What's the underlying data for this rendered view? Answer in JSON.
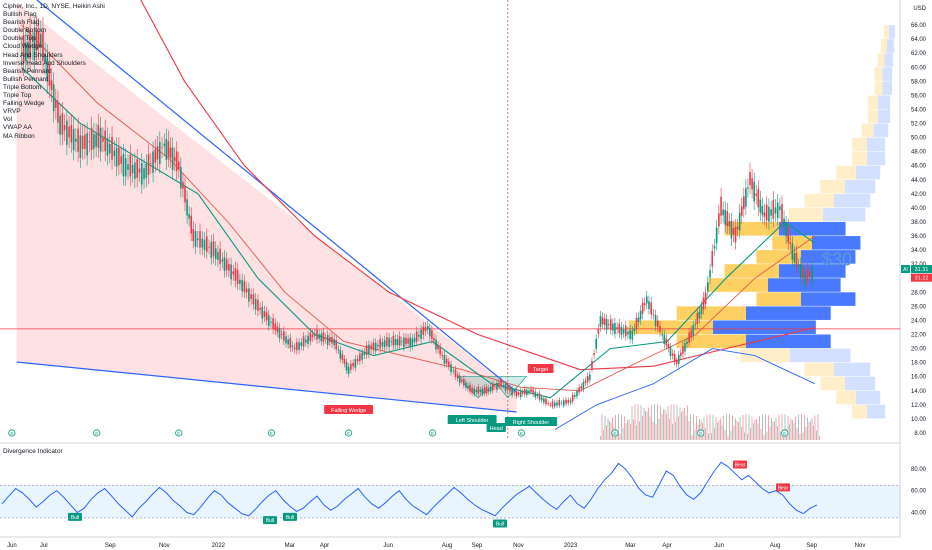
{
  "chart_data": [
    {
      "type": "candlestick",
      "title": "Cipher, Inc., 1D, NYSE, Heikin Ashi",
      "y_axis": {
        "unit": "USD",
        "range": [
          7,
          69
        ],
        "ticks": [
          8,
          10,
          12,
          14,
          16,
          18,
          20,
          22,
          24,
          26,
          28,
          30,
          32,
          34,
          36,
          38,
          40,
          42,
          44,
          46,
          48,
          50,
          52,
          54,
          56,
          58,
          60,
          62,
          64,
          66
        ],
        "tick_labels": [
          "8.00",
          "10.00",
          "12.00",
          "14.00",
          "16.00",
          "18.00",
          "20.00",
          "22.00",
          "24.00",
          "26.00",
          "28.00",
          "30.00",
          "32.00",
          "34.00",
          "36.00",
          "38.00",
          "40.00",
          "42.00",
          "44.00",
          "46.00",
          "48.00",
          "50.00",
          "52.00",
          "54.00",
          "56.00",
          "58.00",
          "60.00",
          "62.00",
          "64.00",
          "66.00"
        ],
        "currency_label": "USD"
      },
      "x_axis": {
        "tick_labels": [
          "Jun",
          "Jul",
          "Sep",
          "Nov",
          "2022",
          "Mar",
          "Apr",
          "Jun",
          "Aug",
          "Sep",
          "Nov",
          "2023",
          "Mar",
          "Apr",
          "Jun",
          "Aug",
          "Sep",
          "Nov"
        ]
      },
      "price_path": [
        {
          "date": "2021-06-15",
          "close": 62
        },
        {
          "date": "2021-07-05",
          "close": 64
        },
        {
          "date": "2021-07-25",
          "close": 52
        },
        {
          "date": "2021-08-15",
          "close": 49
        },
        {
          "date": "2021-09-05",
          "close": 50
        },
        {
          "date": "2021-10-01",
          "close": 46
        },
        {
          "date": "2021-10-20",
          "close": 45
        },
        {
          "date": "2021-11-10",
          "close": 49
        },
        {
          "date": "2021-11-25",
          "close": 46
        },
        {
          "date": "2021-12-10",
          "close": 36
        },
        {
          "date": "2021-12-31",
          "close": 34
        },
        {
          "date": "2022-01-25",
          "close": 30
        },
        {
          "date": "2022-02-15",
          "close": 26
        },
        {
          "date": "2022-03-05",
          "close": 23
        },
        {
          "date": "2022-03-25",
          "close": 20
        },
        {
          "date": "2022-04-15",
          "close": 22
        },
        {
          "date": "2022-05-05",
          "close": 21
        },
        {
          "date": "2022-05-20",
          "close": 17
        },
        {
          "date": "2022-06-10",
          "close": 20
        },
        {
          "date": "2022-07-01",
          "close": 21
        },
        {
          "date": "2022-07-25",
          "close": 21
        },
        {
          "date": "2022-08-10",
          "close": 23
        },
        {
          "date": "2022-08-25",
          "close": 19
        },
        {
          "date": "2022-09-10",
          "close": 16
        },
        {
          "date": "2022-09-25",
          "close": 14
        },
        {
          "date": "2022-10-10",
          "close": 14
        },
        {
          "date": "2022-10-25",
          "close": 15
        },
        {
          "date": "2022-11-10",
          "close": 13.5
        },
        {
          "date": "2022-11-25",
          "close": 14
        },
        {
          "date": "2022-12-15",
          "close": 12
        },
        {
          "date": "2023-01-05",
          "close": 12.5
        },
        {
          "date": "2023-01-25",
          "close": 16
        },
        {
          "date": "2023-02-05",
          "close": 24
        },
        {
          "date": "2023-02-20",
          "close": 23
        },
        {
          "date": "2023-03-10",
          "close": 22
        },
        {
          "date": "2023-03-25",
          "close": 27
        },
        {
          "date": "2023-04-10",
          "close": 22
        },
        {
          "date": "2023-04-25",
          "close": 18
        },
        {
          "date": "2023-05-10",
          "close": 22
        },
        {
          "date": "2023-05-25",
          "close": 27
        },
        {
          "date": "2023-06-10",
          "close": 40
        },
        {
          "date": "2023-06-25",
          "close": 36
        },
        {
          "date": "2023-07-10",
          "close": 44
        },
        {
          "date": "2023-07-25",
          "close": 39
        },
        {
          "date": "2023-08-10",
          "close": 40
        },
        {
          "date": "2023-08-25",
          "close": 33
        },
        {
          "date": "2023-09-05",
          "close": 30
        },
        {
          "date": "2023-09-15",
          "close": 31
        }
      ],
      "last_price_labels": [
        {
          "text": "AI",
          "kind": "symbol",
          "color": "#089981"
        },
        {
          "text": "31.31",
          "value": 31.31,
          "color": "#089981"
        },
        {
          "text": "31.22",
          "value": 31.22,
          "color": "#f23645"
        }
      ],
      "patterns": [
        {
          "label": "Falling Wedge",
          "color": "#f23645"
        },
        {
          "label": "Target",
          "color": "#f23645"
        },
        {
          "label": "Left Shoulder",
          "color": "#089981"
        },
        {
          "label": "Head",
          "color": "#089981"
        },
        {
          "label": "Right Shoulder",
          "color": "#089981"
        }
      ],
      "annotation_text": "$30",
      "indicators": [
        "VRVP",
        "Vol",
        "VWAP AA",
        "MA Ribbon"
      ],
      "legend_items": [
        "Bullish Flag",
        "Bearish Flag",
        "Double Bottom",
        "Double Top",
        "Cloud Wedge",
        "Head And Shoulders",
        "Inverse Head And Shoulders",
        "Bearish Pennant",
        "Bullish Pennant",
        "Triple Bottom",
        "Triple Top",
        "Falling Wedge",
        "VRVP",
        "Vol",
        "VWAP AA",
        "MA Ribbon"
      ],
      "horizontal_line_value": 22.8,
      "vertical_marker_date": "2022-11-01",
      "earnings_marker": "E"
    },
    {
      "type": "line",
      "title": "Divergence Indicator",
      "y_axis": {
        "range": [
          24,
          100
        ],
        "ticks": [
          40,
          60,
          80
        ],
        "tick_labels": [
          "40.00",
          "60.00",
          "80.00"
        ]
      },
      "band": [
        35,
        65
      ],
      "series": [
        {
          "values": [
            48,
            55,
            62,
            58,
            52,
            45,
            50,
            56,
            60,
            54,
            47,
            40,
            44,
            52,
            58,
            62,
            55,
            48,
            42,
            36,
            44,
            50,
            57,
            63,
            58,
            51,
            46,
            40,
            38,
            45,
            53,
            60,
            56,
            49,
            44,
            39,
            37,
            43,
            50,
            56,
            60,
            52,
            46,
            41,
            44,
            50,
            55,
            47,
            42,
            46,
            52,
            57,
            62,
            54,
            48,
            44,
            49,
            55,
            60,
            52,
            46,
            42,
            38,
            45,
            51,
            57,
            63,
            58,
            52,
            47,
            43,
            40,
            37,
            44,
            50,
            56,
            60,
            64,
            58,
            52,
            47,
            43,
            50,
            56,
            48,
            44,
            52,
            62,
            70,
            76,
            85,
            80,
            72,
            62,
            56,
            54,
            66,
            78,
            74,
            64,
            56,
            52,
            58,
            68,
            78,
            86,
            82,
            76,
            70,
            74,
            68,
            62,
            58,
            60,
            56,
            48,
            42,
            39,
            44,
            47
          ]
        }
      ],
      "signals": [
        {
          "label": "Bull",
          "color": "#089981"
        },
        {
          "label": "Bull",
          "color": "#089981"
        },
        {
          "label": "Bull",
          "color": "#089981"
        },
        {
          "label": "Bull",
          "color": "#089981"
        },
        {
          "label": "Bull",
          "color": "#089981"
        },
        {
          "label": "Bear",
          "color": "#f23645"
        },
        {
          "label": "Bear",
          "color": "#f23645"
        }
      ]
    }
  ]
}
